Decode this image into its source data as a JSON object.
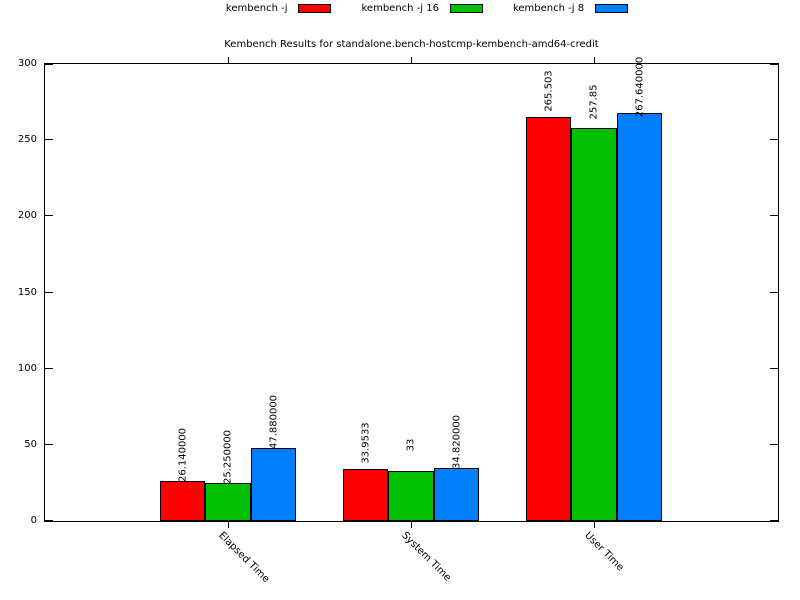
{
  "chart_data": {
    "type": "bar",
    "title": "Kembench Results for standalone.bench-hostcmp-kembench-amd64-credit",
    "categories": [
      "Elapsed Time",
      "System Time",
      "User Time"
    ],
    "series": [
      {
        "name": "kembench -j",
        "color": "#ff0000",
        "values": [
          26.14,
          33.9533,
          265.503
        ],
        "bar_labels": [
          "26.140000",
          "33.9533",
          "265.503"
        ]
      },
      {
        "name": "kembench -j 16",
        "color": "#00c000",
        "values": [
          25.25,
          33,
          257.85
        ],
        "bar_labels": [
          "25.250000",
          "33",
          "257.85"
        ]
      },
      {
        "name": "kembench -j 8",
        "color": "#0080ff",
        "values": [
          47.88,
          34.82,
          267.64
        ],
        "bar_labels": [
          "47.880000",
          "34.820000",
          "267.640000"
        ]
      }
    ],
    "xlabel": "",
    "ylabel": "",
    "ylim": [
      0,
      300
    ],
    "yticks": [
      0,
      50,
      100,
      150,
      200,
      250,
      300
    ],
    "grid": false,
    "legend_position": "top",
    "bar_outline_color": "#000000",
    "background_color": "#ffffff",
    "bar_label_offset_units": 17
  }
}
